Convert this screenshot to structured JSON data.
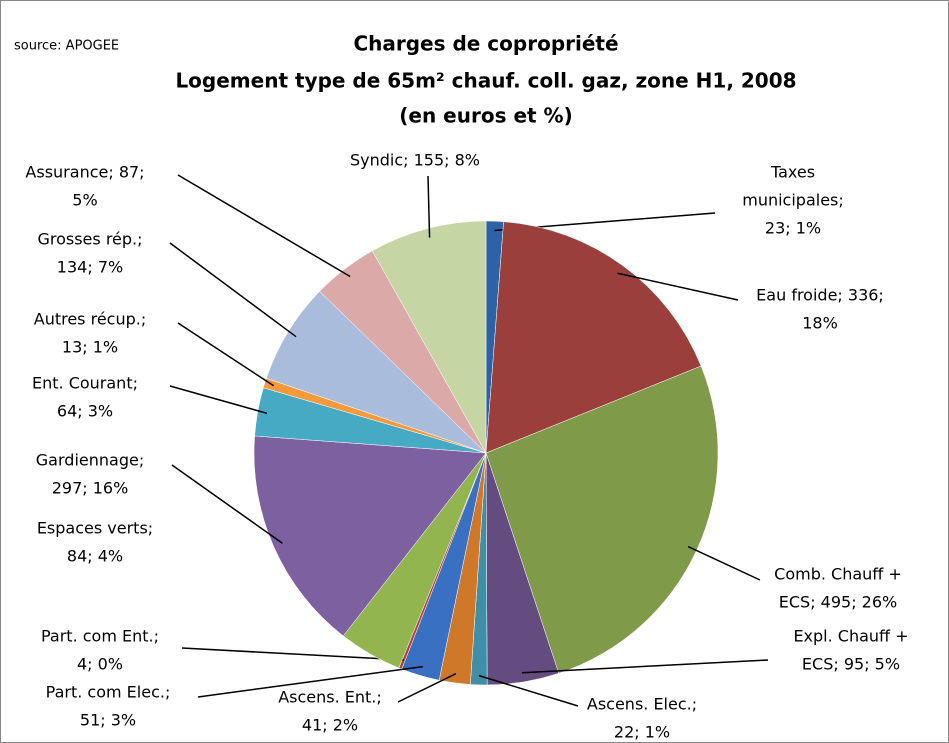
{
  "chart_data": {
    "type": "pie",
    "source": "source: APOGEE",
    "title": [
      "Charges de copropriété",
      "Logement type de 65m² chauf. coll. gaz, zone H1, 2008",
      "(en euros et %)"
    ],
    "values": [
      23,
      336,
      495,
      95,
      22,
      41,
      51,
      4,
      84,
      297,
      64,
      13,
      134,
      87,
      155
    ],
    "value_labels": [
      [
        "Taxes",
        "municipales;",
        "23; 1%"
      ],
      [
        "Eau froide; 336;",
        "18%"
      ],
      [
        "Comb. Chauff +",
        "ECS; 495; 26%"
      ],
      [
        "Expl. Chauff +",
        "ECS; 95; 5%"
      ],
      [
        "Ascens. Elec.;",
        "22; 1%"
      ],
      [
        "Ascens. Ent.;",
        "41; 2%"
      ],
      [
        "Part. com Elec.;",
        "51; 3%"
      ],
      [
        "Part. com Ent.;",
        "4; 0%"
      ],
      [
        "Espaces verts;",
        "84; 4%"
      ],
      [
        "Gardiennage;",
        "297; 16%"
      ],
      [
        "Ent. Courant;",
        "64; 3%"
      ],
      [
        "Autres récup.;",
        "13; 1%"
      ],
      [
        "Grosses rép.;",
        "134; 7%"
      ],
      [
        "Assurance; 87;",
        "5%"
      ],
      [
        "Syndic; 155; 8%"
      ]
    ],
    "colors": [
      "#2e62a6",
      "#9b3f3d",
      "#7f9a48",
      "#644b80",
      "#3f8fa6",
      "#d0782a",
      "#3a70c2",
      "#b13f3d",
      "#93b550",
      "#7d60a0",
      "#46aac5",
      "#f59a3c",
      "#a9bcdc",
      "#dba9a8",
      "#c6d5a4"
    ]
  }
}
